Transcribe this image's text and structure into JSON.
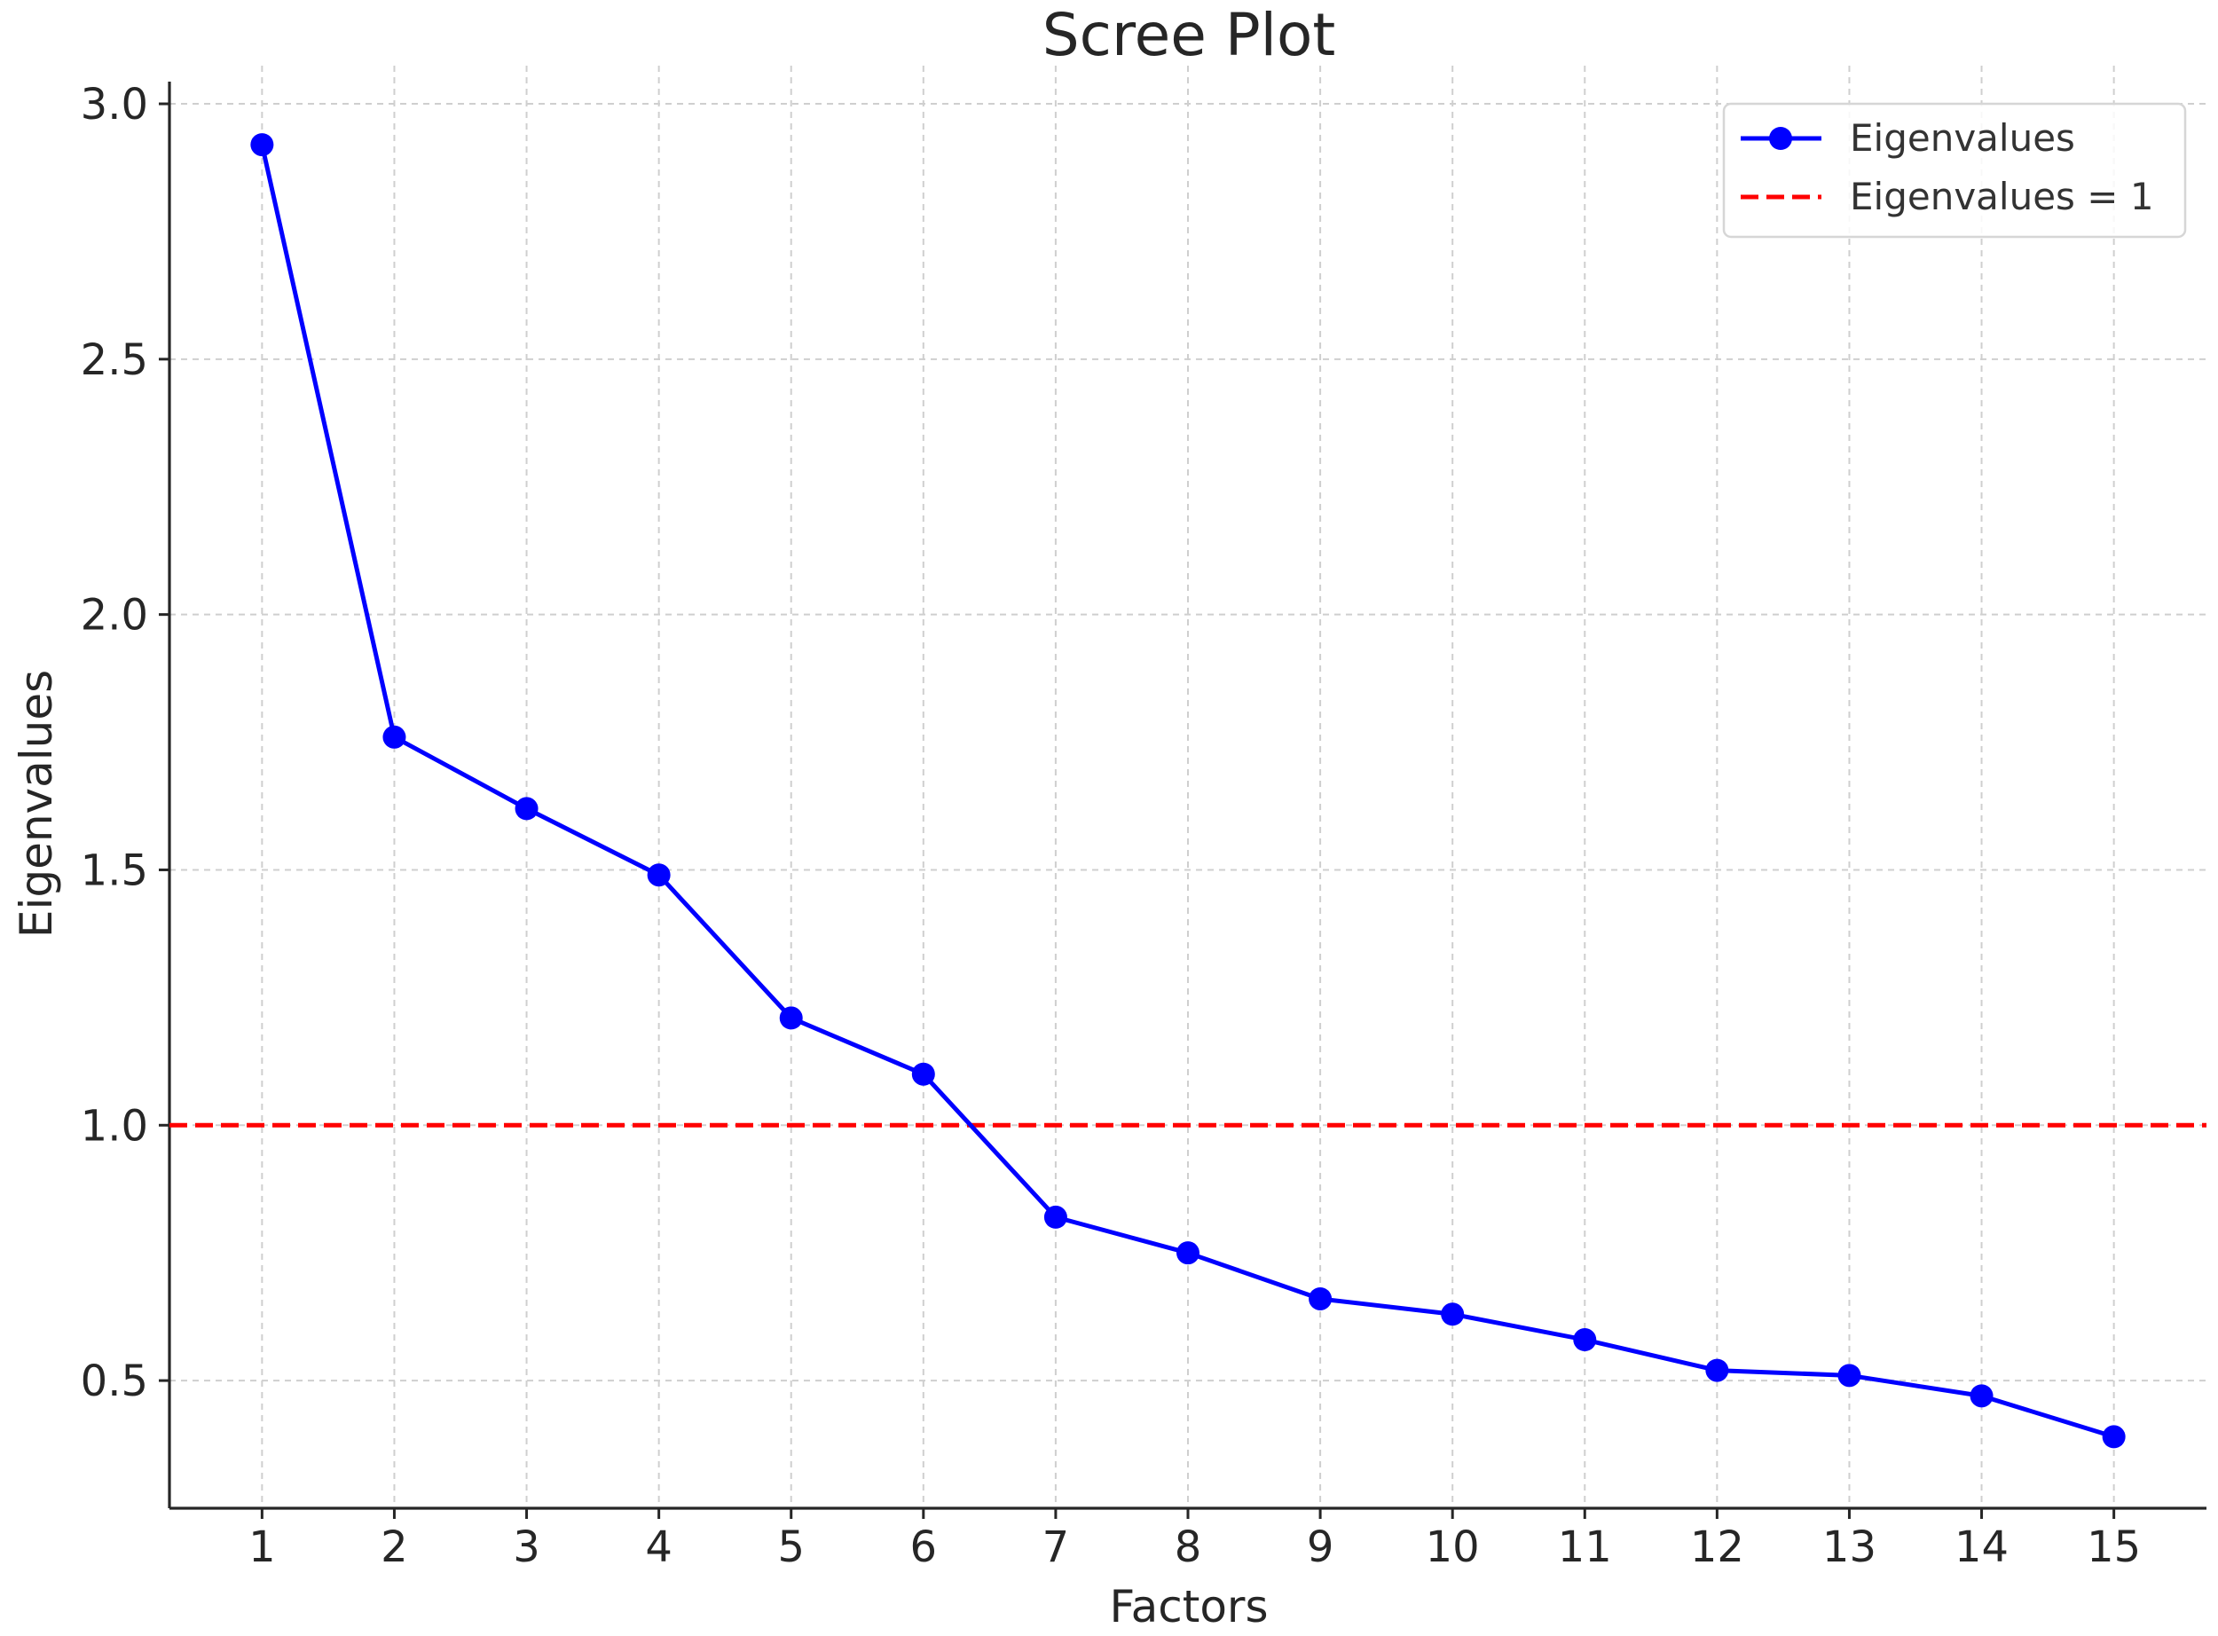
{
  "chart_data": {
    "type": "line",
    "title": "Scree Plot",
    "xlabel": "Factors",
    "ylabel": "Eigenvalues",
    "x": [
      1,
      2,
      3,
      4,
      5,
      6,
      7,
      8,
      9,
      10,
      11,
      12,
      13,
      14,
      15
    ],
    "series": [
      {
        "name": "Eigenvalues",
        "color": "#0000ff",
        "marker": "circle",
        "values": [
          2.92,
          1.76,
          1.62,
          1.49,
          1.21,
          1.1,
          0.82,
          0.75,
          0.66,
          0.63,
          0.58,
          0.52,
          0.51,
          0.47,
          0.39
        ]
      }
    ],
    "reference_lines": [
      {
        "name": "Eigenvalues = 1",
        "orientation": "horizontal",
        "y": 1.0,
        "color": "#ff0000",
        "style": "dashed"
      }
    ],
    "xticks": [
      "1",
      "2",
      "3",
      "4",
      "5",
      "6",
      "7",
      "8",
      "9",
      "10",
      "11",
      "12",
      "13",
      "14",
      "15"
    ],
    "yticks": [
      "0.5",
      "1.0",
      "1.5",
      "2.0",
      "2.5",
      "3.0"
    ],
    "xlim": [
      0.3,
      15.7
    ],
    "ylim": [
      0.25,
      3.04
    ],
    "grid": true,
    "legend_position": "top-right"
  }
}
